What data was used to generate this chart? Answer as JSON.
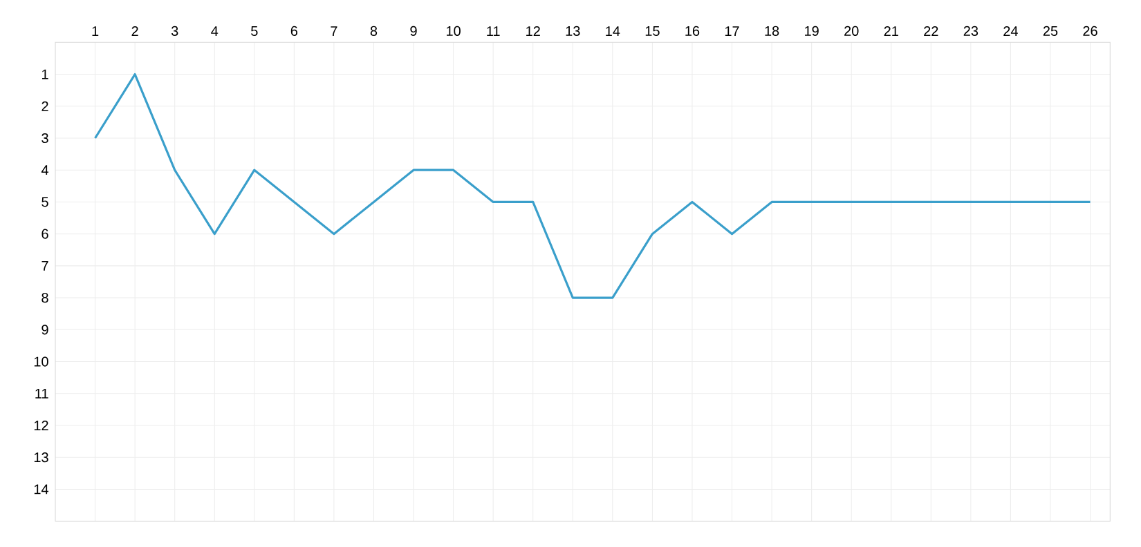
{
  "chart_data": {
    "type": "line",
    "x": [
      1,
      2,
      3,
      4,
      5,
      6,
      7,
      8,
      9,
      10,
      11,
      12,
      13,
      14,
      15,
      16,
      17,
      18,
      19,
      20,
      21,
      22,
      23,
      24,
      25,
      26
    ],
    "series": [
      {
        "color": "#3a9fcb",
        "values": [
          3,
          1,
          4,
          6,
          4,
          5,
          6,
          5,
          4,
          4,
          5,
          5,
          8,
          8,
          6,
          5,
          6,
          5,
          5,
          5,
          5,
          5,
          5,
          5,
          5,
          5
        ]
      }
    ],
    "xlim": [
      0,
      26.5
    ],
    "ylim": [
      15,
      0
    ],
    "xticks": [
      1,
      2,
      3,
      4,
      5,
      6,
      7,
      8,
      9,
      10,
      11,
      12,
      13,
      14,
      15,
      16,
      17,
      18,
      19,
      20,
      21,
      22,
      23,
      24,
      25,
      26
    ],
    "yticks": [
      1,
      2,
      3,
      4,
      5,
      6,
      7,
      8,
      9,
      10,
      11,
      12,
      13,
      14
    ],
    "grid": true,
    "marker": "none",
    "line_style": "solid"
  }
}
